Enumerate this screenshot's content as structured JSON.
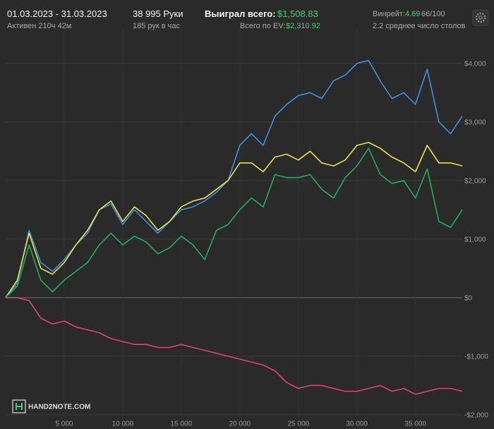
{
  "header": {
    "period": "01.03.2023 - 31.03.2023",
    "active": "Активен 210ч 42м",
    "hands": "38 995 Руки",
    "hands_per_hour": "185 рук в час",
    "won_label": "Выиграл всего:",
    "won_value": "$1,508.83",
    "ev_label": "Всего по EV:",
    "ev_value": "$2,310.92",
    "winrate_label": "Винрейт:",
    "winrate_value": "4.69",
    "winrate_unit": "66/100",
    "tables": "2.2 среднее число столов"
  },
  "watermark": "HAND2NOTE.COM",
  "chart_data": {
    "type": "line",
    "x": [
      0,
      1000,
      2000,
      3000,
      4000,
      5000,
      6000,
      7000,
      8000,
      9000,
      10000,
      11000,
      12000,
      13000,
      14000,
      15000,
      16000,
      17000,
      18000,
      19000,
      20000,
      21000,
      22000,
      23000,
      24000,
      25000,
      26000,
      27000,
      28000,
      29000,
      30000,
      31000,
      32000,
      33000,
      34000,
      35000,
      36000,
      37000,
      38000,
      38995
    ],
    "series": [
      {
        "color": "#3f8fe0",
        "values": [
          0,
          250,
          1150,
          600,
          450,
          650,
          900,
          1100,
          1500,
          1600,
          1250,
          1500,
          1300,
          1100,
          1300,
          1500,
          1550,
          1650,
          1800,
          2000,
          2600,
          2800,
          2600,
          3100,
          3300,
          3450,
          3500,
          3400,
          3700,
          3800,
          4000,
          4050,
          3700,
          3400,
          3500,
          3300,
          3900,
          3000,
          2800,
          3100
        ]
      },
      {
        "color": "#e8e04a",
        "values": [
          0,
          300,
          1100,
          500,
          400,
          600,
          900,
          1150,
          1500,
          1650,
          1300,
          1550,
          1400,
          1150,
          1300,
          1550,
          1650,
          1700,
          1850,
          2000,
          2300,
          2300,
          2150,
          2400,
          2450,
          2350,
          2500,
          2300,
          2250,
          2350,
          2600,
          2650,
          2550,
          2400,
          2300,
          2150,
          2600,
          2300,
          2300,
          2250
        ]
      },
      {
        "color": "#1fad5c",
        "values": [
          0,
          200,
          900,
          300,
          100,
          300,
          450,
          600,
          900,
          1100,
          900,
          1050,
          950,
          750,
          850,
          1050,
          900,
          650,
          1150,
          1250,
          1500,
          1700,
          1550,
          2100,
          2050,
          2050,
          2100,
          1850,
          1700,
          2050,
          2250,
          2550,
          2100,
          1950,
          2000,
          1700,
          2200,
          1300,
          1200,
          1500
        ]
      },
      {
        "color": "#e0407a",
        "values": [
          0,
          0,
          -50,
          -350,
          -450,
          -400,
          -500,
          -550,
          -600,
          -700,
          -750,
          -800,
          -800,
          -850,
          -850,
          -800,
          -850,
          -900,
          -950,
          -1000,
          -1050,
          -1100,
          -1150,
          -1250,
          -1450,
          -1550,
          -1500,
          -1500,
          -1550,
          -1600,
          -1600,
          -1550,
          -1500,
          -1600,
          -1550,
          -1650,
          -1600,
          -1550,
          -1550,
          -1600
        ]
      }
    ],
    "xlim": [
      0,
      38995
    ],
    "xticks": [
      {
        "value": 5000,
        "label": "5 000"
      },
      {
        "value": 10000,
        "label": "10 000"
      },
      {
        "value": 15000,
        "label": "15 000"
      },
      {
        "value": 20000,
        "label": "20 000"
      },
      {
        "value": 25000,
        "label": "25 000"
      },
      {
        "value": 30000,
        "label": "30 000"
      },
      {
        "value": 35000,
        "label": "35 000"
      }
    ],
    "ylim": [
      -2050,
      4600
    ],
    "yticks": [
      {
        "value": -2000,
        "label": "-$2,000"
      },
      {
        "value": -1000,
        "label": "-$1,000"
      },
      {
        "value": 0,
        "label": "$0"
      },
      {
        "value": 1000,
        "label": "$1,000"
      },
      {
        "value": 2000,
        "label": "$2,000"
      },
      {
        "value": 3000,
        "label": "$3,000"
      },
      {
        "value": 4000,
        "label": "$4,000"
      }
    ],
    "grid": true
  }
}
